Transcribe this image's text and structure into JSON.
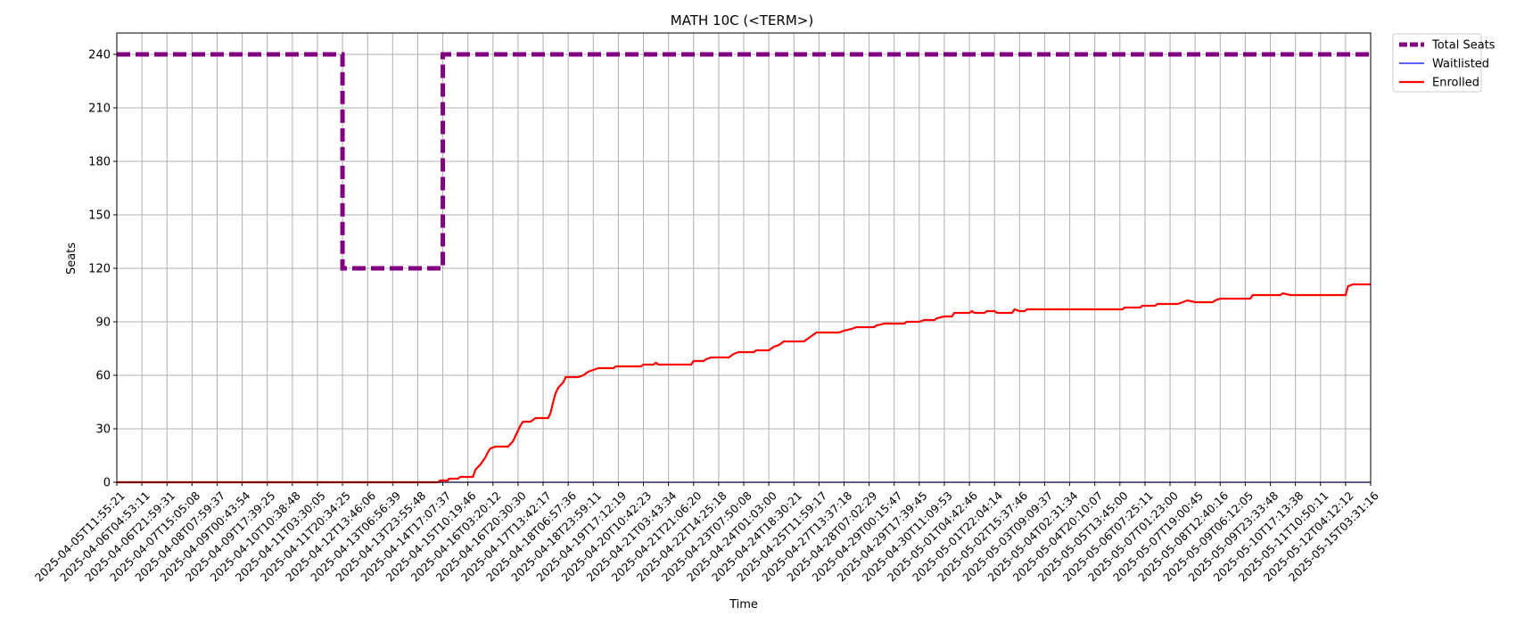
{
  "chart_data": {
    "type": "line",
    "title": "MATH 10C (<TERM>)",
    "xlabel": "Time",
    "ylabel": "Seats",
    "ylim": [
      0,
      252
    ],
    "y_ticks": [
      0,
      30,
      60,
      90,
      120,
      150,
      180,
      210,
      240
    ],
    "grid": true,
    "legend_position": "outside-top-right",
    "x_ticks": [
      "2025-04-05T11:55:21",
      "2025-04-06T04:53:11",
      "2025-04-06T21:59:31",
      "2025-04-07T15:05:08",
      "2025-04-08T07:59:37",
      "2025-04-09T00:43:54",
      "2025-04-09T17:39:25",
      "2025-04-10T10:38:48",
      "2025-04-11T03:30:05",
      "2025-04-11T20:34:25",
      "2025-04-12T13:46:06",
      "2025-04-13T06:56:39",
      "2025-04-13T23:55:48",
      "2025-04-14T17:07:37",
      "2025-04-15T10:19:46",
      "2025-04-16T03:20:12",
      "2025-04-16T20:30:30",
      "2025-04-17T13:42:17",
      "2025-04-18T06:57:36",
      "2025-04-18T23:59:11",
      "2025-04-19T17:12:19",
      "2025-04-20T10:42:23",
      "2025-04-21T03:43:34",
      "2025-04-21T21:06:20",
      "2025-04-22T14:25:18",
      "2025-04-23T07:50:08",
      "2025-04-24T01:03:00",
      "2025-04-24T18:30:21",
      "2025-04-25T11:59:17",
      "2025-04-27T13:37:18",
      "2025-04-28T07:02:29",
      "2025-04-29T00:15:47",
      "2025-04-29T17:39:45",
      "2025-04-30T11:09:53",
      "2025-05-01T04:42:46",
      "2025-05-01T22:04:14",
      "2025-05-02T15:37:46",
      "2025-05-03T09:09:37",
      "2025-05-04T02:31:34",
      "2025-05-04T20:10:07",
      "2025-05-05T13:45:00",
      "2025-05-06T07:25:11",
      "2025-05-07T01:23:00",
      "2025-05-07T19:00:45",
      "2025-05-08T12:40:16",
      "2025-05-09T06:12:05",
      "2025-05-09T23:33:48",
      "2025-05-10T17:13:38",
      "2025-05-11T10:50:11",
      "2025-05-12T04:12:12",
      "2025-05-15T03:31:16"
    ],
    "series": [
      {
        "name": "Total Seats",
        "color": "#800080",
        "style": "dashed",
        "points": [
          [
            0,
            240
          ],
          [
            9.0,
            240
          ],
          [
            9.0,
            120
          ],
          [
            13.0,
            120
          ],
          [
            13.0,
            240
          ],
          [
            50,
            240
          ]
        ]
      },
      {
        "name": "Waitlisted",
        "color": "#0000ff",
        "style": "solid",
        "points": [
          [
            0,
            0
          ],
          [
            50,
            0
          ]
        ]
      },
      {
        "name": "Enrolled",
        "color": "#ff0000",
        "style": "solid",
        "points": [
          [
            0,
            0
          ],
          [
            12.8,
            0
          ],
          [
            12.9,
            1
          ],
          [
            13.2,
            1
          ],
          [
            13.25,
            2
          ],
          [
            13.6,
            2
          ],
          [
            13.7,
            3
          ],
          [
            14.2,
            3
          ],
          [
            14.3,
            7
          ],
          [
            14.5,
            10
          ],
          [
            14.7,
            14
          ],
          [
            14.8,
            17
          ],
          [
            14.9,
            19
          ],
          [
            15.1,
            20
          ],
          [
            15.6,
            20
          ],
          [
            15.8,
            23
          ],
          [
            15.9,
            26
          ],
          [
            16.0,
            29
          ],
          [
            16.1,
            32
          ],
          [
            16.2,
            34
          ],
          [
            16.5,
            34
          ],
          [
            16.7,
            36
          ],
          [
            17.2,
            36
          ],
          [
            17.3,
            39
          ],
          [
            17.4,
            45
          ],
          [
            17.5,
            50
          ],
          [
            17.6,
            53
          ],
          [
            17.8,
            56
          ],
          [
            17.9,
            59
          ],
          [
            18.4,
            59
          ],
          [
            18.6,
            60
          ],
          [
            18.8,
            62
          ],
          [
            19.0,
            63
          ],
          [
            19.2,
            64
          ],
          [
            19.8,
            64
          ],
          [
            19.9,
            65
          ],
          [
            20.9,
            65
          ],
          [
            21.0,
            66
          ],
          [
            21.4,
            66
          ],
          [
            21.5,
            67
          ],
          [
            21.6,
            66
          ],
          [
            22.9,
            66
          ],
          [
            23.0,
            68
          ],
          [
            23.4,
            68
          ],
          [
            23.5,
            69
          ],
          [
            23.7,
            70
          ],
          [
            24.4,
            70
          ],
          [
            24.6,
            72
          ],
          [
            24.8,
            73
          ],
          [
            25.4,
            73
          ],
          [
            25.5,
            74
          ],
          [
            26.0,
            74
          ],
          [
            26.2,
            76
          ],
          [
            26.4,
            77
          ],
          [
            26.6,
            79
          ],
          [
            27.4,
            79
          ],
          [
            27.5,
            80
          ],
          [
            27.7,
            82
          ],
          [
            27.9,
            84
          ],
          [
            28.8,
            84
          ],
          [
            29.0,
            85
          ],
          [
            29.3,
            86
          ],
          [
            29.5,
            87
          ],
          [
            30.2,
            87
          ],
          [
            30.3,
            88
          ],
          [
            30.6,
            89
          ],
          [
            31.4,
            89
          ],
          [
            31.5,
            90
          ],
          [
            32.0,
            90
          ],
          [
            32.2,
            91
          ],
          [
            32.6,
            91
          ],
          [
            32.7,
            92
          ],
          [
            33.0,
            93
          ],
          [
            33.3,
            93
          ],
          [
            33.4,
            95
          ],
          [
            34.0,
            95
          ],
          [
            34.1,
            96
          ],
          [
            34.2,
            95
          ],
          [
            34.6,
            95
          ],
          [
            34.7,
            96
          ],
          [
            35.0,
            96
          ],
          [
            35.1,
            95
          ],
          [
            35.7,
            95
          ],
          [
            35.8,
            97
          ],
          [
            36.0,
            96
          ],
          [
            36.2,
            96
          ],
          [
            36.3,
            97
          ],
          [
            40.1,
            97
          ],
          [
            40.2,
            98
          ],
          [
            40.8,
            98
          ],
          [
            40.9,
            99
          ],
          [
            41.4,
            99
          ],
          [
            41.5,
            100
          ],
          [
            42.3,
            100
          ],
          [
            42.5,
            101
          ],
          [
            42.7,
            102
          ],
          [
            43.0,
            101
          ],
          [
            43.7,
            101
          ],
          [
            43.8,
            102
          ],
          [
            44.0,
            103
          ],
          [
            45.2,
            103
          ],
          [
            45.3,
            105
          ],
          [
            46.4,
            105
          ],
          [
            46.5,
            106
          ],
          [
            46.8,
            105
          ],
          [
            49.0,
            105
          ],
          [
            49.1,
            110
          ],
          [
            49.3,
            111
          ],
          [
            50,
            111
          ]
        ]
      }
    ]
  }
}
